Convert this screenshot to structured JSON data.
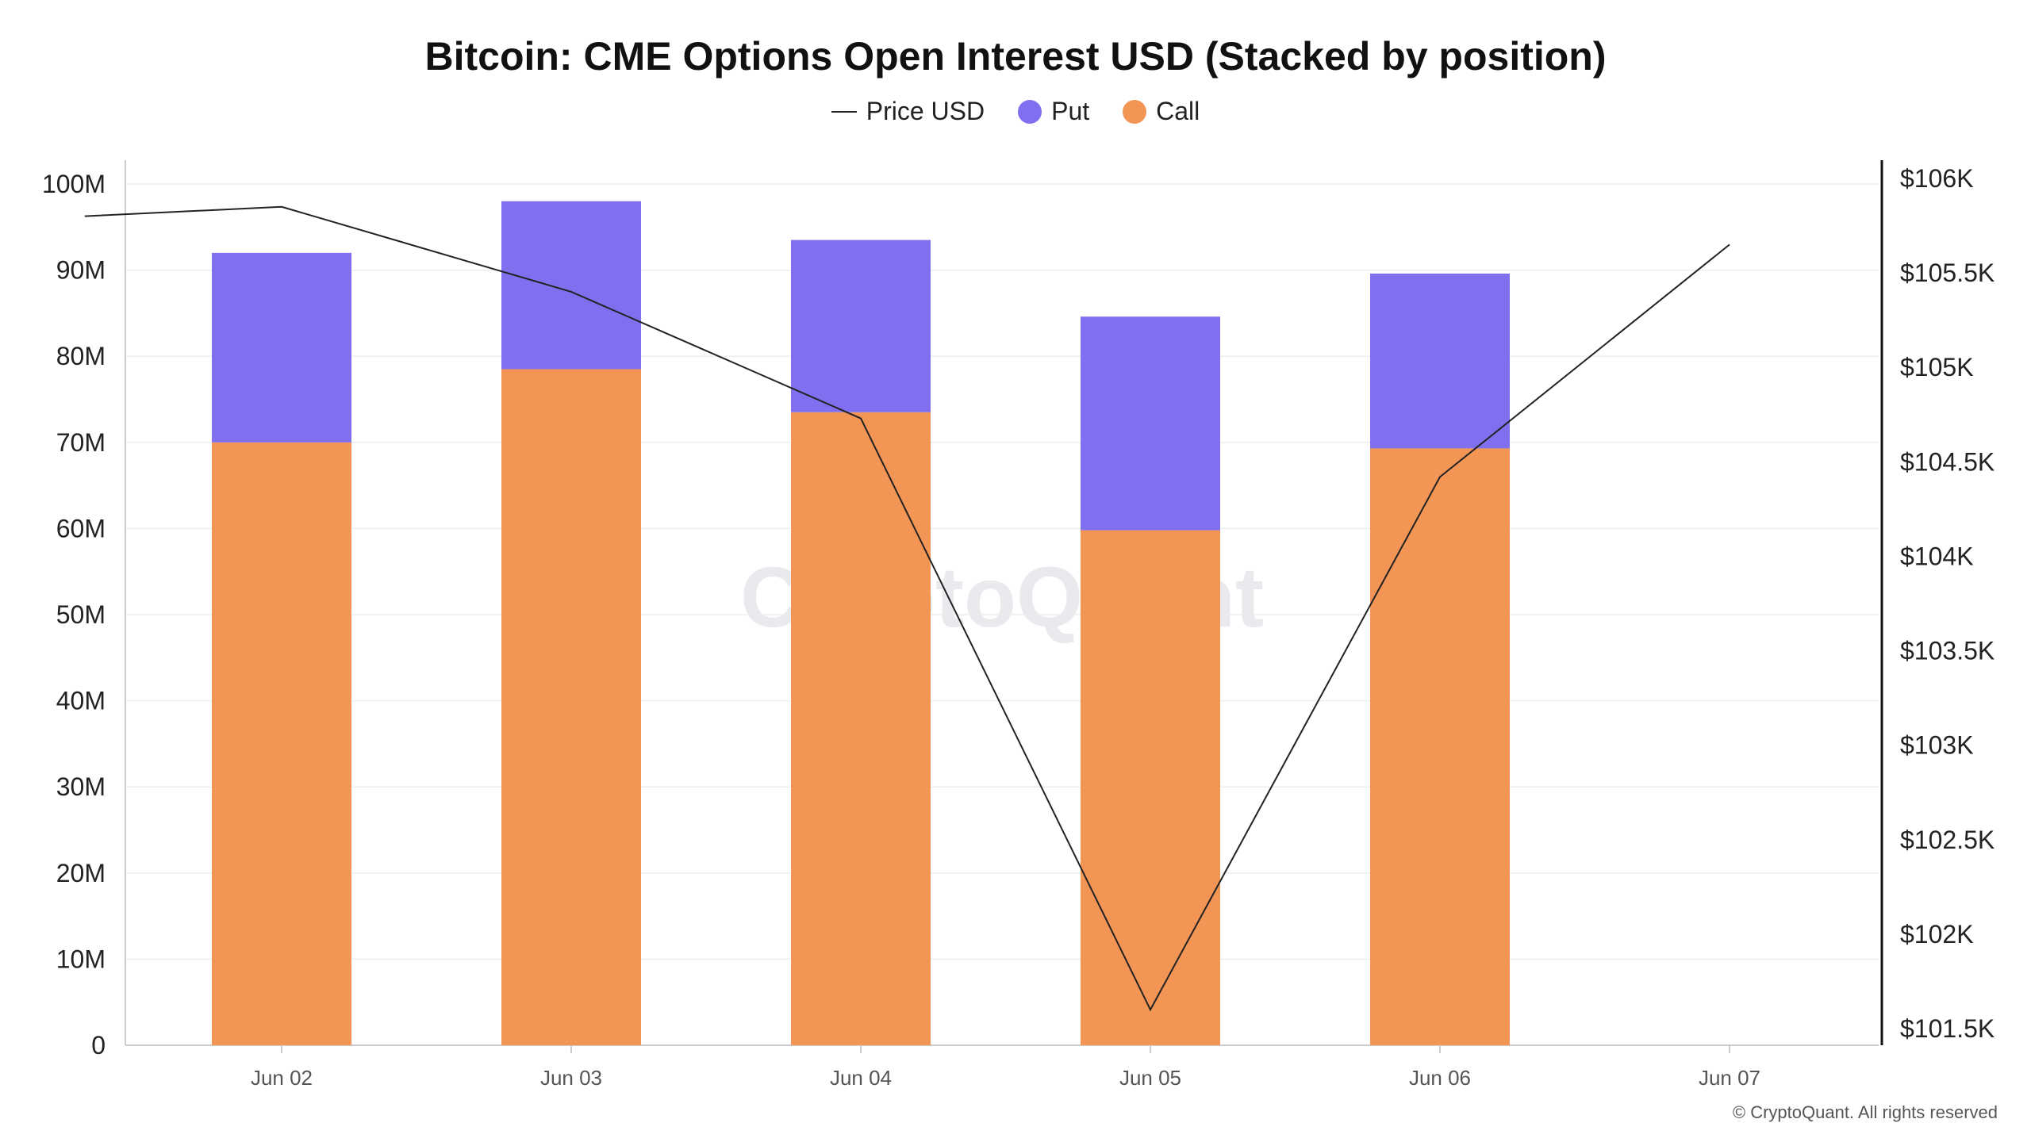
{
  "watermark": "CryptoQuant",
  "copyright": "© CryptoQuant. All rights reserved",
  "colors": {
    "put": "#8070f0",
    "call": "#f29555",
    "price": "#222222",
    "grid": "#eeeeee"
  },
  "chart_data": {
    "type": "bar",
    "stacked": true,
    "title": "Bitcoin: CME Options Open Interest USD (Stacked by position)",
    "legend": [
      {
        "name": "Price USD",
        "marker": "line"
      },
      {
        "name": "Put",
        "marker": "dot"
      },
      {
        "name": "Call",
        "marker": "dot"
      }
    ],
    "categories": [
      "Jun 02",
      "Jun 03",
      "Jun 04",
      "Jun 05",
      "Jun 06",
      "Jun 07"
    ],
    "series": [
      {
        "name": "Call",
        "axis": "left",
        "values": [
          70000000,
          78500000,
          73500000,
          59800000,
          69300000,
          null
        ]
      },
      {
        "name": "Put",
        "axis": "left",
        "values": [
          22000000,
          19500000,
          20000000,
          24800000,
          20300000,
          null
        ]
      },
      {
        "name": "Price USD",
        "type": "line",
        "axis": "right",
        "x": [
          "Jun 01",
          "Jun 02",
          "Jun 03",
          "Jun 04",
          "Jun 05",
          "Jun 06",
          "Jun 07"
        ],
        "values": [
          105800,
          105850,
          105400,
          104730,
          101600,
          104420,
          105650
        ]
      }
    ],
    "y_left": {
      "min": 0,
      "max": 100000000,
      "ticks": [
        "0",
        "10M",
        "20M",
        "30M",
        "40M",
        "50M",
        "60M",
        "70M",
        "80M",
        "90M",
        "100M"
      ]
    },
    "y_right": {
      "min": 101500,
      "max": 106000,
      "ticks": [
        "$101.5K",
        "$102K",
        "$102.5K",
        "$103K",
        "$103.5K",
        "$104K",
        "$104.5K",
        "$105K",
        "$105.5K",
        "$106K"
      ]
    },
    "grid": true,
    "legend_position": "top-center"
  }
}
